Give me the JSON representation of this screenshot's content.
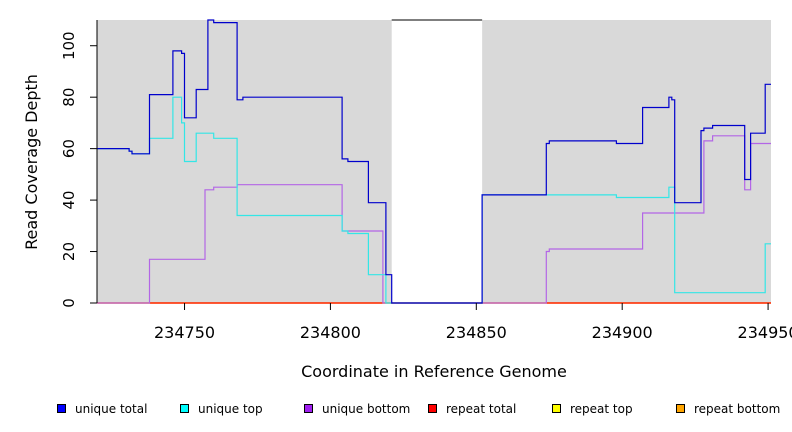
{
  "chart_data": {
    "type": "line",
    "xlabel": "Coordinate in Reference Genome",
    "ylabel": "Read Coverage Depth",
    "xlim": [
      234720,
      234951
    ],
    "ylim": [
      0,
      110
    ],
    "x_ticks": [
      234750,
      234800,
      234850,
      234900,
      234950
    ],
    "y_ticks": [
      0,
      20,
      40,
      60,
      80,
      100
    ],
    "grid": false,
    "legend_position": "bottom",
    "background_color": "#d9d9d9",
    "gap_regions": [
      [
        234821,
        234852
      ]
    ],
    "series": [
      {
        "name": "unique total",
        "color": "#0000cc",
        "x": [
          234720,
          234731,
          234732,
          234738,
          234746,
          234749,
          234750,
          234754,
          234758,
          234760,
          234768,
          234770,
          234804,
          234806,
          234813,
          234819,
          234821,
          234852,
          234874,
          234875,
          234898,
          234907,
          234916,
          234917,
          234918,
          234927,
          234928,
          234931,
          234942,
          234944,
          234949,
          234951
        ],
        "y": [
          60,
          59,
          58,
          81,
          98,
          97,
          72,
          83,
          110,
          109,
          79,
          80,
          56,
          55,
          39,
          11,
          0,
          42,
          62,
          63,
          62,
          76,
          80,
          79,
          39,
          67,
          68,
          69,
          48,
          66,
          85,
          85
        ]
      },
      {
        "name": "unique top",
        "color": "#33e6e6",
        "x": [
          234720,
          234731,
          234732,
          234738,
          234746,
          234749,
          234750,
          234754,
          234760,
          234768,
          234804,
          234806,
          234813,
          234819,
          234821,
          234852,
          234898,
          234916,
          234918,
          234928,
          234949,
          234951
        ],
        "y": [
          60,
          59,
          58,
          64,
          80,
          70,
          55,
          66,
          64,
          34,
          28,
          27,
          11,
          0,
          0,
          42,
          41,
          45,
          4,
          4,
          23,
          23
        ]
      },
      {
        "name": "unique bottom",
        "color": "#b366e6",
        "x": [
          234720,
          234738,
          234757,
          234760,
          234768,
          234804,
          234818,
          234821,
          234874,
          234875,
          234907,
          234928,
          234931,
          234942,
          234944,
          234951
        ],
        "y": [
          0,
          17,
          44,
          45,
          46,
          28,
          0,
          0,
          20,
          21,
          35,
          63,
          65,
          44,
          62,
          62
        ]
      },
      {
        "name": "repeat total",
        "color": "#ff0000",
        "x": [
          234720,
          234951
        ],
        "y": [
          0,
          0
        ]
      },
      {
        "name": "repeat top",
        "color": "#ffff00",
        "x": [
          234720,
          234951
        ],
        "y": [
          0,
          0
        ]
      },
      {
        "name": "repeat bottom",
        "color": "#ffa500",
        "x": [
          234720,
          234951
        ],
        "y": [
          0,
          0
        ]
      }
    ],
    "legend": [
      {
        "label": "unique total",
        "color": "#0000ff"
      },
      {
        "label": "unique top",
        "color": "#00ffff"
      },
      {
        "label": "unique bottom",
        "color": "#a020f0"
      },
      {
        "label": "repeat total",
        "color": "#ff0000"
      },
      {
        "label": "repeat top",
        "color": "#ffff00"
      },
      {
        "label": "repeat bottom",
        "color": "#ffa500"
      }
    ]
  }
}
